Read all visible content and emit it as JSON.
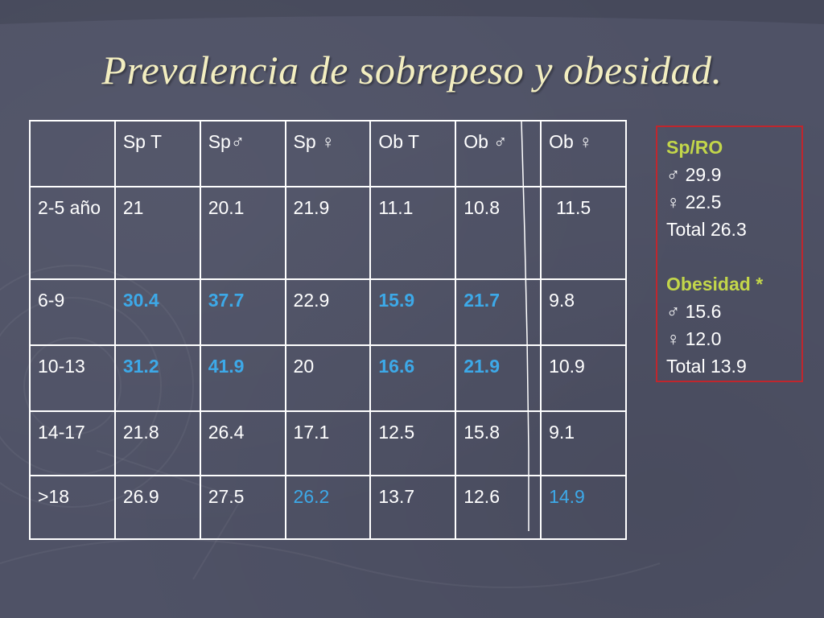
{
  "title": "Prevalencia de sobrepeso y obesidad.",
  "table": {
    "headers": [
      "",
      "Sp T",
      "Sp♂",
      "Sp ♀",
      "Ob T",
      "Ob ♂",
      "Ob ♀"
    ],
    "rows": [
      {
        "label": "2-5 año",
        "values": [
          "21",
          "20.1",
          "21.9",
          "11.1",
          "10.8",
          "11.5"
        ]
      },
      {
        "label": "6-9",
        "values": [
          "30.4",
          "37.7",
          "22.9",
          "15.9",
          "21.7",
          "9.8"
        ]
      },
      {
        "label": "10-13",
        "values": [
          "31.2",
          "41.9",
          "20",
          "16.6",
          "21.9",
          "10.9"
        ]
      },
      {
        "label": "14-17",
        "values": [
          "21.8",
          "26.4",
          "17.1",
          "12.5",
          "15.8",
          "9.1"
        ]
      },
      {
        "label": ">18",
        "values": [
          "26.9",
          "27.5",
          "26.2",
          "13.7",
          "12.6",
          "14.9"
        ]
      }
    ]
  },
  "side_box": {
    "sp_heading": "Sp/RO",
    "sp_male": "♂ 29.9",
    "sp_female": "♀ 22.5",
    "sp_total": "Total 26.3",
    "ob_heading": "Obesidad *",
    "ob_male": "♂ 15.6",
    "ob_female": "♀ 12.0",
    "ob_total": "Total 13.9"
  },
  "colors": {
    "background": "#4f5266",
    "title": "#f3eec0",
    "highlight": "#3da9e8",
    "box_border": "#c0262d",
    "box_heading": "#c3d64a"
  }
}
